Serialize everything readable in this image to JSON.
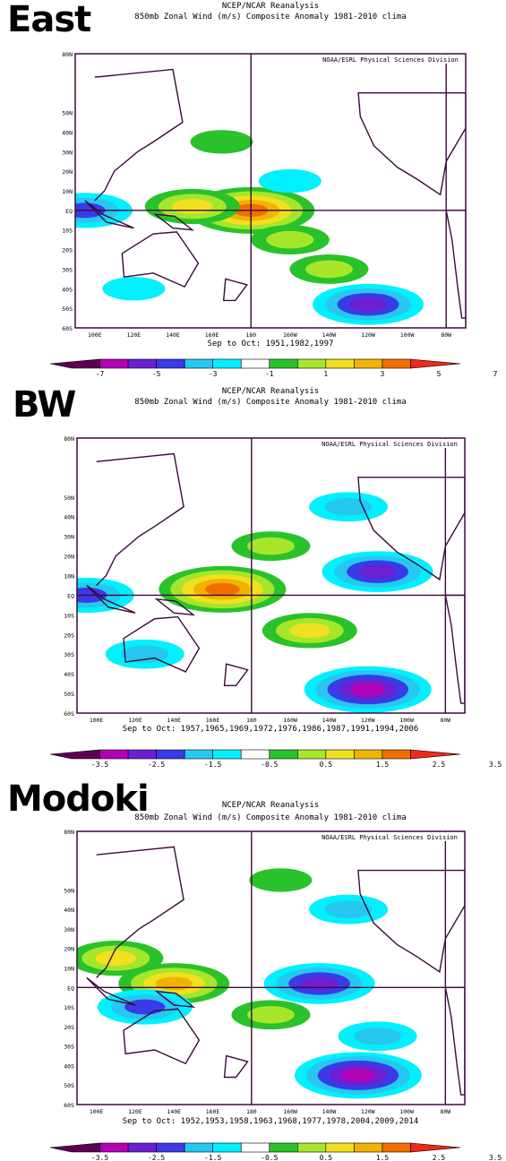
{
  "chart_data": [
    {
      "type": "heatmap",
      "panel_label": "East",
      "title": "NCEP/NCAR Reanalysis",
      "subtitle": "850mb Zonal Wind (m/s) Composite Anomaly 1981-2010 clima",
      "credit": "NOAA/ESRL Physical Sciences Division",
      "period": "Sep to Oct: 1951,1982,1997",
      "x_ticks": [
        "100E",
        "120E",
        "140E",
        "160E",
        "180",
        "160W",
        "140W",
        "120W",
        "100W",
        "80W"
      ],
      "y_ticks": [
        "80N",
        "50N",
        "40N",
        "30N",
        "20N",
        "10N",
        "EQ",
        "10S",
        "20S",
        "30S",
        "40S",
        "50S",
        "60S"
      ],
      "colorbar_ticks": [
        "-7",
        "-5",
        "-3",
        "-1",
        "1",
        "3",
        "5",
        "7"
      ],
      "colors": [
        "#5a0050",
        "#b400b4",
        "#6b1fd0",
        "#3a3ae6",
        "#26c8f0",
        "#00f0ff",
        "#ffffff",
        "#2ac22a",
        "#a6e62a",
        "#f0e020",
        "#f0b400",
        "#f06e00",
        "#ee2a1a"
      ],
      "features": [
        {
          "kind": "pos",
          "lon": 180,
          "lat": 0,
          "level": 5
        },
        {
          "kind": "pos",
          "lon": 150,
          "lat": 2,
          "level": 3
        },
        {
          "kind": "pos",
          "lon": 200,
          "lat": -15,
          "level": 2
        },
        {
          "kind": "pos",
          "lon": 220,
          "lat": -30,
          "level": 2
        },
        {
          "kind": "pos",
          "lon": 165,
          "lat": 35,
          "level": 1
        },
        {
          "kind": "neg",
          "lon": 240,
          "lat": -48,
          "level": 4
        },
        {
          "kind": "neg",
          "lon": 120,
          "lat": -40,
          "level": 1
        },
        {
          "kind": "neg",
          "lon": 95,
          "lat": 0,
          "level": 3
        },
        {
          "kind": "neg",
          "lon": 200,
          "lat": 15,
          "level": 1
        }
      ]
    },
    {
      "type": "heatmap",
      "panel_label": "BW",
      "title": "NCEP/NCAR Reanalysis",
      "subtitle": "850mb Zonal Wind (m/s) Composite Anomaly 1981-2010 clima",
      "credit": "NOAA/ESRL Physical Sciences Division",
      "period": "Sep to Oct: 1957,1965,1969,1972,1976,1986,1987,1991,1994,2006",
      "x_ticks": [
        "100E",
        "120E",
        "140E",
        "160E",
        "180",
        "160W",
        "140W",
        "120W",
        "100W",
        "80W"
      ],
      "y_ticks": [
        "80N",
        "50N",
        "40N",
        "30N",
        "20N",
        "10N",
        "EQ",
        "10S",
        "20S",
        "30S",
        "40S",
        "50S",
        "60S"
      ],
      "colorbar_ticks": [
        "-3.5",
        "-2.5",
        "-1.5",
        "-0.5",
        "0.5",
        "1.5",
        "2.5",
        "3.5"
      ],
      "colors": [
        "#5a0050",
        "#b400b4",
        "#6b1fd0",
        "#3a3ae6",
        "#26c8f0",
        "#00f0ff",
        "#ffffff",
        "#2ac22a",
        "#a6e62a",
        "#f0e020",
        "#f0b400",
        "#f06e00",
        "#ee2a1a"
      ],
      "features": [
        {
          "kind": "pos",
          "lon": 165,
          "lat": 3,
          "level": 5
        },
        {
          "kind": "pos",
          "lon": 210,
          "lat": -18,
          "level": 3
        },
        {
          "kind": "pos",
          "lon": 190,
          "lat": 25,
          "level": 2
        },
        {
          "kind": "neg",
          "lon": 240,
          "lat": -48,
          "level": 5
        },
        {
          "kind": "neg",
          "lon": 245,
          "lat": 12,
          "level": 4
        },
        {
          "kind": "neg",
          "lon": 230,
          "lat": 45,
          "level": 2
        },
        {
          "kind": "neg",
          "lon": 125,
          "lat": -30,
          "level": 2
        },
        {
          "kind": "neg",
          "lon": 95,
          "lat": 0,
          "level": 3
        }
      ]
    },
    {
      "type": "heatmap",
      "panel_label": "Modoki",
      "title": "NCEP/NCAR Reanalysis",
      "subtitle": "850mb Zonal Wind (m/s) Composite Anomaly 1981-2010 clima",
      "credit": "NOAA/ESRL Physical Sciences Division",
      "period": "Sep to Oct: 1952,1953,1958,1963,1968,1977,1978,2004,2009,2014",
      "x_ticks": [
        "100E",
        "120E",
        "140E",
        "160E",
        "180",
        "160W",
        "140W",
        "120W",
        "100W",
        "80W"
      ],
      "y_ticks": [
        "80N",
        "50N",
        "40N",
        "30N",
        "20N",
        "10N",
        "EQ",
        "10S",
        "20S",
        "30S",
        "40S",
        "50S",
        "60S"
      ],
      "colorbar_ticks": [
        "-3.5",
        "-2.5",
        "-1.5",
        "-0.5",
        "0.5",
        "1.5",
        "2.5",
        "3.5"
      ],
      "colors": [
        "#5a0050",
        "#b400b4",
        "#6b1fd0",
        "#3a3ae6",
        "#26c8f0",
        "#00f0ff",
        "#ffffff",
        "#2ac22a",
        "#a6e62a",
        "#f0e020",
        "#f0b400",
        "#f06e00",
        "#ee2a1a"
      ],
      "features": [
        {
          "kind": "pos",
          "lon": 140,
          "lat": 2,
          "level": 4
        },
        {
          "kind": "pos",
          "lon": 110,
          "lat": 15,
          "level": 3
        },
        {
          "kind": "pos",
          "lon": 190,
          "lat": -14,
          "level": 2
        },
        {
          "kind": "pos",
          "lon": 195,
          "lat": 55,
          "level": 1
        },
        {
          "kind": "neg",
          "lon": 235,
          "lat": -45,
          "level": 5
        },
        {
          "kind": "neg",
          "lon": 215,
          "lat": 2,
          "level": 4
        },
        {
          "kind": "neg",
          "lon": 245,
          "lat": -25,
          "level": 2
        },
        {
          "kind": "neg",
          "lon": 125,
          "lat": -10,
          "level": 3
        },
        {
          "kind": "neg",
          "lon": 230,
          "lat": 40,
          "level": 2
        }
      ]
    }
  ]
}
